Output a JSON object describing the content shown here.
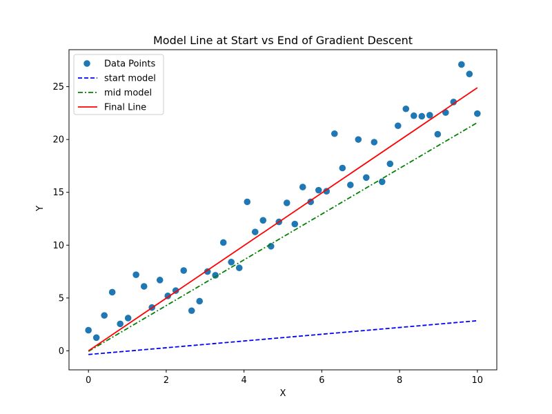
{
  "chart_data": {
    "type": "scatter",
    "title": "Model Line at Start vs End of Gradient Descent",
    "xlabel": "X",
    "ylabel": "Y",
    "xlim": [
      -0.5,
      10.5
    ],
    "ylim": [
      -1.8,
      28.5
    ],
    "xticks": [
      0,
      2,
      4,
      6,
      8,
      10
    ],
    "yticks": [
      0,
      5,
      10,
      15,
      20,
      25
    ],
    "grid": false,
    "legend_position": "upper-left",
    "points": {
      "name": "Data Points",
      "color": "#1f77b4",
      "x": [
        0,
        0.204,
        0.408,
        0.612,
        0.816,
        1.02,
        1.224,
        1.429,
        1.633,
        1.837,
        2.041,
        2.245,
        2.449,
        2.653,
        2.857,
        3.061,
        3.265,
        3.469,
        3.673,
        3.878,
        4.082,
        4.286,
        4.49,
        4.694,
        4.898,
        5.102,
        5.306,
        5.51,
        5.714,
        5.918,
        6.122,
        6.327,
        6.531,
        6.735,
        6.939,
        7.143,
        7.347,
        7.551,
        7.755,
        7.959,
        8.163,
        8.367,
        8.571,
        8.776,
        8.98,
        9.184,
        9.388,
        9.592,
        9.796,
        10
      ],
      "y": [
        1.95,
        1.25,
        3.35,
        5.55,
        2.55,
        3.1,
        7.2,
        6.1,
        4.1,
        6.7,
        5.2,
        5.7,
        7.6,
        3.8,
        4.7,
        7.5,
        7.15,
        10.25,
        8.4,
        7.85,
        14.1,
        11.25,
        12.35,
        9.9,
        12.2,
        14,
        12,
        15.5,
        14.1,
        15.2,
        15.1,
        20.55,
        17.3,
        15.7,
        20,
        16.4,
        19.75,
        16,
        17.7,
        21.3,
        22.9,
        22.25,
        22.2,
        22.3,
        20.5,
        22.55,
        23.55,
        27.1,
        26.2,
        22.45
      ]
    },
    "lines": [
      {
        "name": "start model",
        "color": "#0000ff",
        "style": "dashed",
        "x": [
          0,
          10
        ],
        "y": [
          -0.35,
          2.85
        ]
      },
      {
        "name": "mid model",
        "color": "#008000",
        "style": "dashdot",
        "x": [
          0,
          10
        ],
        "y": [
          -0.05,
          21.6
        ]
      },
      {
        "name": "Final Line",
        "color": "#ff0000",
        "style": "solid",
        "x": [
          0,
          10
        ],
        "y": [
          0.0,
          24.9
        ]
      }
    ]
  }
}
